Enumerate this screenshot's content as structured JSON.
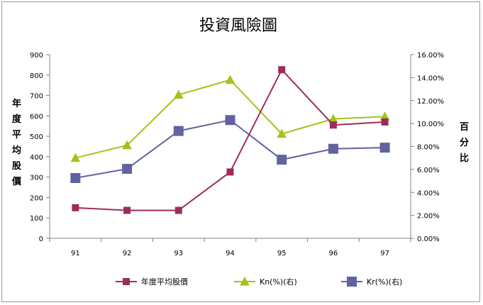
{
  "chart_data": {
    "type": "line",
    "title": "投資風險圖",
    "ylabel_left": "年度平均股價",
    "ylabel_right": "百分比",
    "categories": [
      "91",
      "92",
      "93",
      "94",
      "95",
      "96",
      "97"
    ],
    "y_left": {
      "min": 0,
      "max": 900,
      "step": 100,
      "ticks": [
        "0",
        "100",
        "200",
        "300",
        "400",
        "500",
        "600",
        "700",
        "800",
        "900"
      ]
    },
    "y_right": {
      "min": 0,
      "max": 16,
      "step": 2,
      "ticks": [
        "0.00%",
        "2.00%",
        "4.00%",
        "6.00%",
        "8.00%",
        "10.00%",
        "12.00%",
        "14.00%",
        "16.00%"
      ]
    },
    "grid": false,
    "legend_position": "bottom",
    "series": [
      {
        "name": "年度平均股價",
        "axis": "left",
        "color": "#9b2d5e",
        "marker": "square-small",
        "values": [
          150,
          137,
          137,
          325,
          826,
          555,
          570
        ]
      },
      {
        "name": "Kn(%)(右)",
        "axis": "right",
        "color": "#a6c21a",
        "marker": "triangle",
        "values": [
          7.0,
          8.1,
          12.5,
          13.8,
          9.1,
          10.4,
          10.6
        ]
      },
      {
        "name": "Kr(%)(右)",
        "axis": "right",
        "color": "#6262a0",
        "marker": "square-large",
        "values": [
          5.25,
          6.05,
          9.35,
          10.3,
          6.85,
          7.8,
          7.9
        ]
      }
    ]
  }
}
